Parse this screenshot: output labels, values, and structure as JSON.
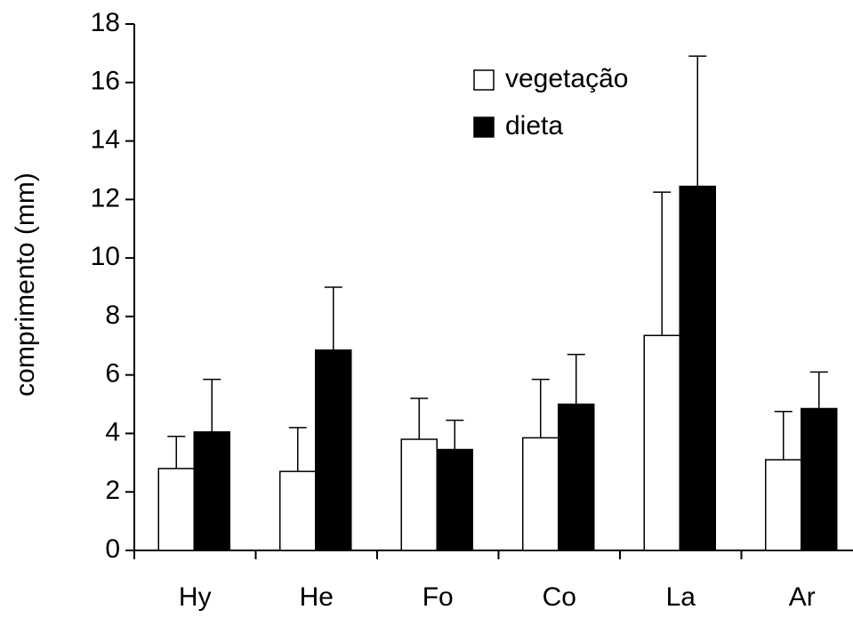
{
  "chart_data": {
    "type": "bar",
    "y_label": "comprimento (mm)",
    "categories": [
      "Hy",
      "He",
      "Fo",
      "Co",
      "La",
      "Ar"
    ],
    "series": [
      {
        "name": "vegetação",
        "color": "#ffffff",
        "values": [
          2.8,
          2.7,
          3.8,
          3.85,
          7.35,
          3.1
        ],
        "errors": [
          1.1,
          1.5,
          1.4,
          2.0,
          4.9,
          1.65
        ]
      },
      {
        "name": "dieta",
        "color": "#000000",
        "values": [
          4.05,
          6.85,
          3.45,
          5.0,
          12.45,
          4.85
        ],
        "errors": [
          1.8,
          2.15,
          1.0,
          1.7,
          4.45,
          1.25
        ]
      }
    ],
    "ylim": [
      0,
      18
    ],
    "yticks": [
      0,
      2,
      4,
      6,
      8,
      10,
      12,
      14,
      16,
      18
    ],
    "legend": "top-right"
  }
}
